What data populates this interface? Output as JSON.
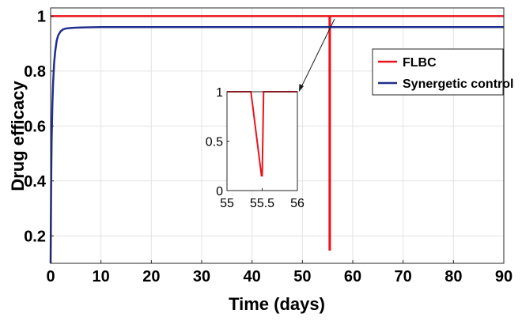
{
  "chart_data": [
    {
      "type": "line",
      "title": "",
      "xlabel": "Time (days)",
      "ylabel": "Drug efficacy",
      "xlim": [
        0,
        90
      ],
      "ylim": [
        0.1,
        1.03
      ],
      "x_ticks": [
        0,
        10,
        20,
        30,
        40,
        50,
        60,
        70,
        80,
        90
      ],
      "y_ticks": [
        0.2,
        0.4,
        0.6,
        0.8,
        1
      ],
      "grid": true,
      "legend_position": "right",
      "series": [
        {
          "name": "FLBC",
          "color": "#e8141c",
          "x": [
            0,
            55.38,
            55.38,
            55.48,
            55.48,
            90
          ],
          "y": [
            1,
            1,
            0.15,
            0.15,
            1,
            1
          ]
        },
        {
          "name": "Synergetic control",
          "color": "#1f2f8c",
          "x": [
            0,
            0.1,
            0.2,
            0.35,
            0.5,
            0.7,
            0.9,
            1.2,
            1.5,
            2,
            2.5,
            3,
            4,
            5,
            7,
            10,
            20,
            90
          ],
          "y": [
            0.1,
            0.38,
            0.55,
            0.68,
            0.76,
            0.83,
            0.87,
            0.91,
            0.93,
            0.945,
            0.952,
            0.955,
            0.957,
            0.958,
            0.959,
            0.96,
            0.96,
            0.96
          ]
        }
      ]
    },
    {
      "type": "line",
      "title": "",
      "xlabel": "",
      "ylabel": "",
      "role": "inset zoom",
      "xlim": [
        55,
        56
      ],
      "ylim": [
        0,
        1
      ],
      "x_ticks": [
        55,
        55.5,
        56
      ],
      "y_ticks": [
        0,
        0.5,
        1
      ],
      "grid": false,
      "series": [
        {
          "name": "FLBC",
          "color": "#e8141c",
          "x": [
            55,
            55.34,
            55.49,
            55.5,
            55.52,
            56
          ],
          "y": [
            1,
            1,
            0.15,
            0.15,
            1,
            1
          ]
        }
      ]
    }
  ]
}
